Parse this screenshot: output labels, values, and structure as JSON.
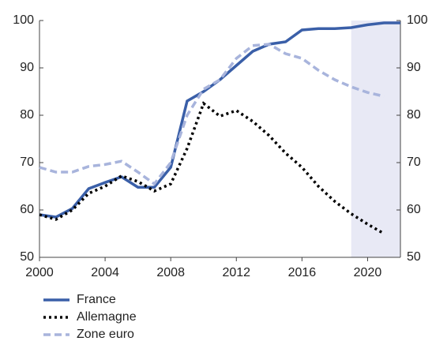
{
  "chart_data": {
    "type": "line",
    "x": [
      2000,
      2001,
      2002,
      2003,
      2004,
      2005,
      2006,
      2007,
      2008,
      2009,
      2010,
      2011,
      2012,
      2013,
      2014,
      2015,
      2016,
      2017,
      2018,
      2019,
      2020,
      2021,
      2022
    ],
    "series": [
      {
        "name": "France",
        "color": "#3a5fa8",
        "dash": "solid",
        "values": [
          59,
          58.5,
          60.3,
          64.5,
          65.8,
          67,
          64.8,
          64.8,
          69,
          83,
          85,
          87.5,
          90.5,
          93.5,
          95,
          95.5,
          98,
          98.3,
          98.3,
          98.5,
          99.1,
          99.5,
          99.5
        ]
      },
      {
        "name": "Allemagne",
        "color": "#000000",
        "dash": "dotted",
        "values": [
          59,
          58,
          60,
          63.5,
          65,
          67.2,
          66,
          64,
          65.5,
          73,
          82.5,
          79.8,
          81,
          78.7,
          75.7,
          72,
          69,
          65,
          61.8,
          59.2,
          57,
          55,
          null
        ]
      },
      {
        "name": "Zone euro",
        "color": "#a8b4dc",
        "dash": "dashed",
        "values": [
          69,
          68,
          68,
          69.2,
          69.6,
          70.3,
          68,
          65.5,
          70,
          80,
          85.5,
          87.5,
          92,
          94.7,
          95,
          93,
          92,
          89.5,
          87.5,
          86,
          84.8,
          84,
          null
        ]
      }
    ],
    "xlim": [
      2000,
      2022
    ],
    "xticks": [
      2000,
      2004,
      2008,
      2012,
      2016,
      2020
    ],
    "ylim": [
      50,
      100
    ],
    "yticks": [
      50,
      60,
      70,
      80,
      90,
      100
    ],
    "y2lim": [
      50,
      100
    ],
    "y2ticks": [
      50,
      60,
      70,
      80,
      90,
      100
    ],
    "shaded_region": {
      "from": 2019,
      "to": 2022,
      "color": "#e8e9f5"
    },
    "legend": "bottom-left"
  }
}
